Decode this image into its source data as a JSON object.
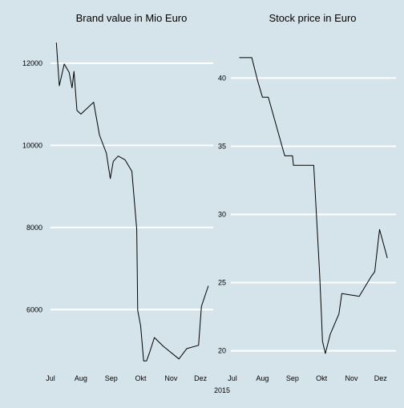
{
  "figure": {
    "background": "#d5e4eb",
    "gridline_color": "#ffffff",
    "line_color": "#000000",
    "year_label": "2015"
  },
  "chart_data": [
    {
      "type": "line",
      "title": "Brand value in Mio Euro",
      "xlabel": "",
      "ylabel": "",
      "x_unit": "date",
      "xlim": [
        "2015-07-01",
        "2015-12-14"
      ],
      "ylim": [
        4600,
        12700
      ],
      "x_ticks": [
        {
          "label": "Jul",
          "date": "2015-07-01"
        },
        {
          "label": "Aug",
          "date": "2015-08-01"
        },
        {
          "label": "Sep",
          "date": "2015-09-01"
        },
        {
          "label": "Okt",
          "date": "2015-10-01"
        },
        {
          "label": "Nov",
          "date": "2015-11-01"
        },
        {
          "label": "Dez",
          "date": "2015-12-01"
        }
      ],
      "y_ticks": [
        {
          "label": "6000",
          "value": 6000
        },
        {
          "label": "8000",
          "value": 8000
        },
        {
          "label": "10000",
          "value": 10000
        },
        {
          "label": "12000",
          "value": 12000
        }
      ],
      "grid": "horizontal",
      "series": [
        {
          "x": [
            "2015-07-07",
            "2015-07-10",
            "2015-07-15",
            "2015-07-20",
            "2015-07-23",
            "2015-07-25",
            "2015-07-28",
            "2015-08-01",
            "2015-08-14",
            "2015-08-20",
            "2015-08-27",
            "2015-08-31",
            "2015-09-03",
            "2015-09-08",
            "2015-09-15",
            "2015-09-22",
            "2015-09-27",
            "2015-09-28",
            "2015-10-01",
            "2015-10-04",
            "2015-10-07",
            "2015-10-10",
            "2015-10-15",
            "2015-10-24",
            "2015-11-09",
            "2015-11-17",
            "2015-11-29",
            "2015-12-02",
            "2015-12-09"
          ],
          "y": [
            12500,
            11450,
            11980,
            11780,
            11400,
            11800,
            10850,
            10760,
            11050,
            10250,
            9810,
            9190,
            9610,
            9740,
            9650,
            9370,
            7950,
            5980,
            5600,
            4750,
            4750,
            4950,
            5320,
            5110,
            4800,
            5050,
            5130,
            6080,
            6580
          ]
        }
      ]
    },
    {
      "type": "line",
      "title": "Stock price in Euro",
      "xlabel": "",
      "ylabel": "",
      "x_unit": "date",
      "xlim": [
        "2015-07-01",
        "2015-12-12"
      ],
      "ylim": [
        18.8,
        43.2
      ],
      "x_ticks": [
        {
          "label": "Jul",
          "date": "2015-07-01"
        },
        {
          "label": "Aug",
          "date": "2015-08-01"
        },
        {
          "label": "Sep",
          "date": "2015-09-01"
        },
        {
          "label": "Okt",
          "date": "2015-10-01"
        },
        {
          "label": "Nov",
          "date": "2015-11-01"
        },
        {
          "label": "Dez",
          "date": "2015-12-01"
        }
      ],
      "y_ticks": [
        {
          "label": "20",
          "value": 20
        },
        {
          "label": "25",
          "value": 25
        },
        {
          "label": "30",
          "value": 30
        },
        {
          "label": "35",
          "value": 35
        },
        {
          "label": "40",
          "value": 40
        }
      ],
      "grid": "horizontal",
      "series": [
        {
          "x": [
            "2015-07-08",
            "2015-07-21",
            "2015-07-27",
            "2015-08-01",
            "2015-08-07",
            "2015-08-24",
            "2015-09-01",
            "2015-09-02",
            "2015-09-13",
            "2015-09-14",
            "2015-09-23",
            "2015-09-29",
            "2015-10-01",
            "2015-10-02",
            "2015-10-05",
            "2015-10-10",
            "2015-10-19",
            "2015-10-22",
            "2015-11-09",
            "2015-11-21",
            "2015-11-25",
            "2015-11-30",
            "2015-12-08"
          ],
          "y": [
            41.5,
            41.5,
            39.8,
            38.6,
            38.6,
            34.3,
            34.3,
            33.6,
            33.6,
            33.6,
            33.6,
            25.7,
            22.5,
            20.7,
            19.8,
            21.2,
            22.7,
            24.2,
            24.0,
            25.4,
            25.8,
            28.9,
            26.8
          ]
        }
      ]
    }
  ]
}
